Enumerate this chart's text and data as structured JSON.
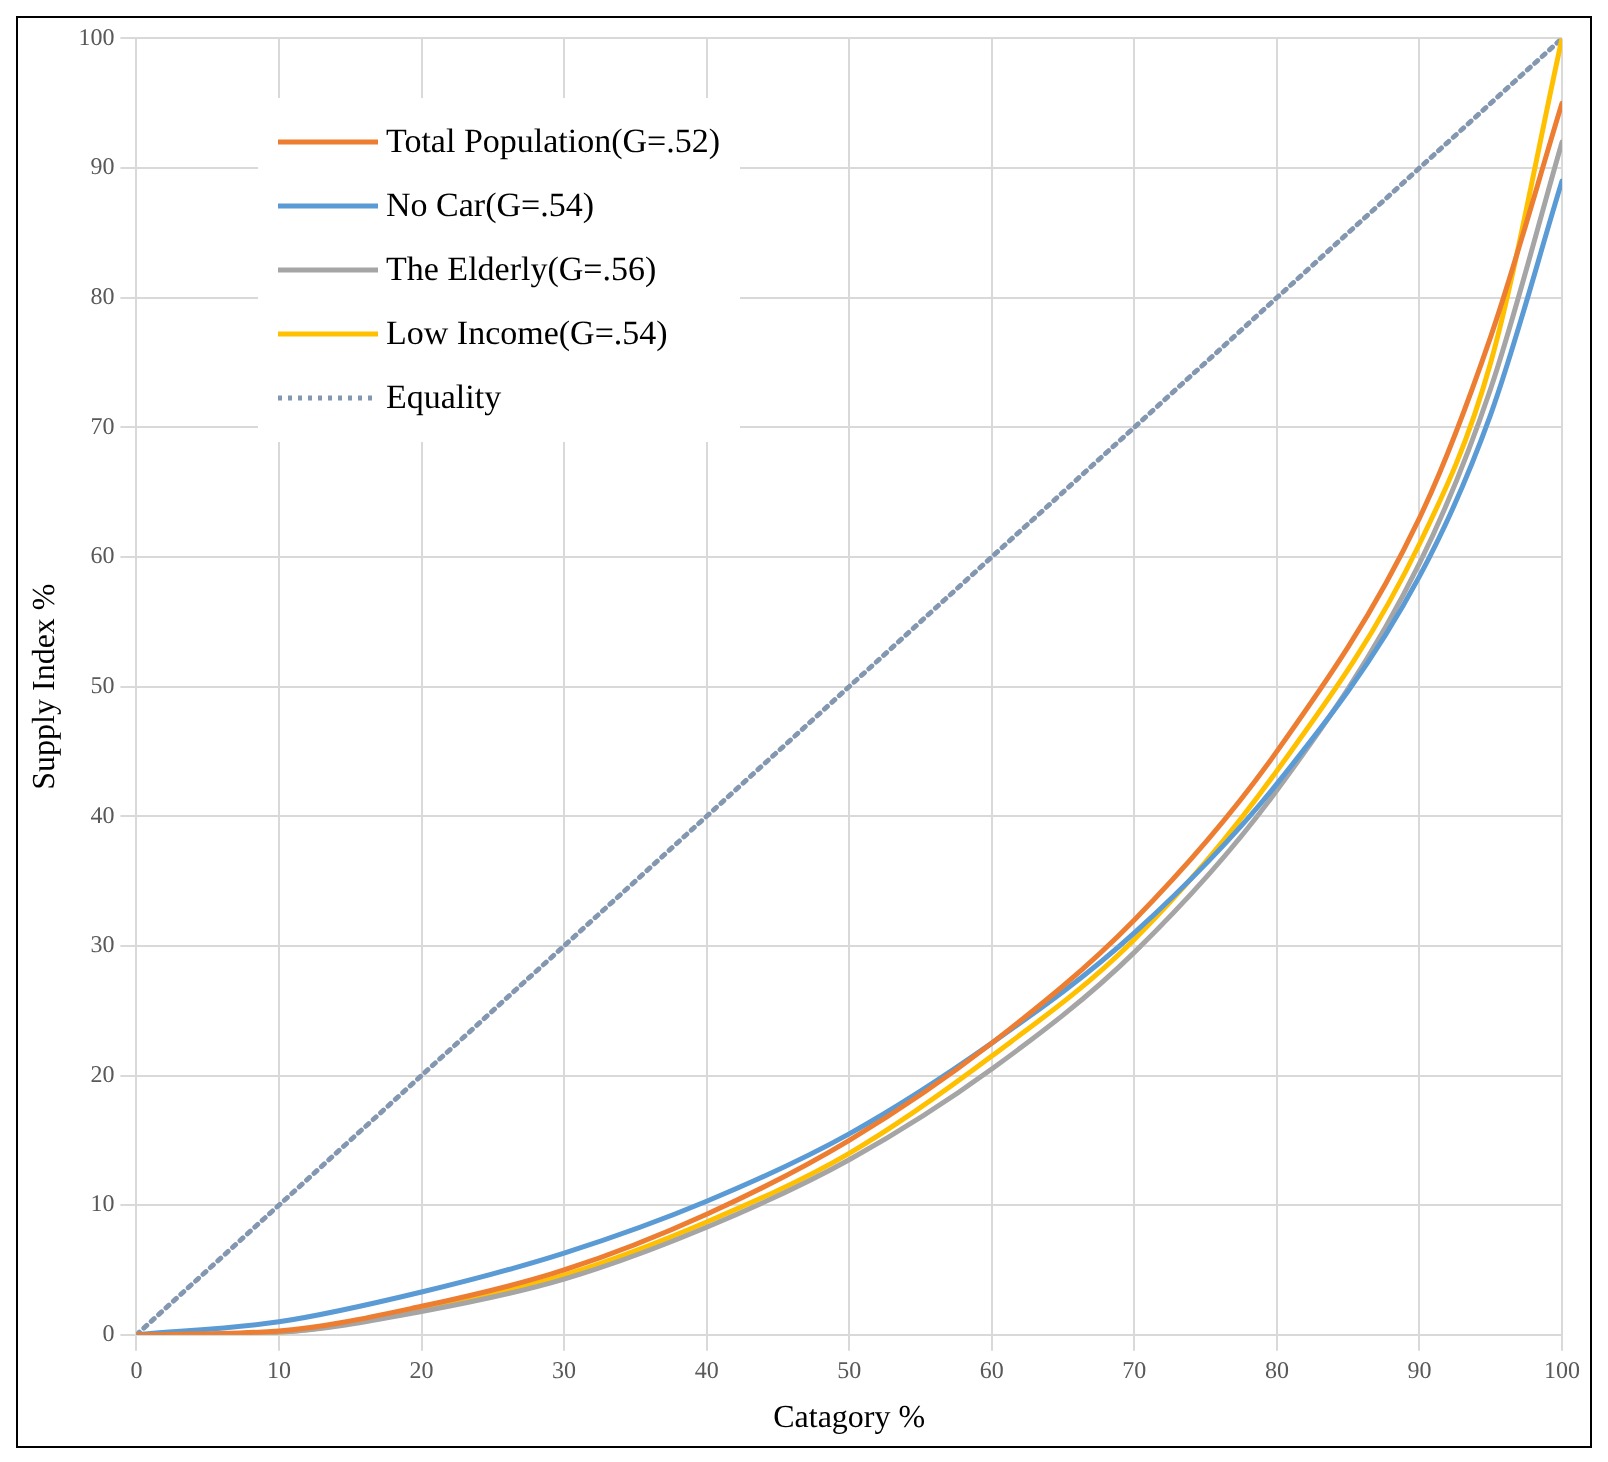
{
  "chart_data": {
    "type": "line",
    "xlabel": "Catagory %",
    "ylabel": "Supply Index %",
    "xlim": [
      0,
      100
    ],
    "xticks": [
      0,
      10,
      20,
      30,
      40,
      50,
      60,
      70,
      80,
      90,
      100
    ],
    "ylim": [
      0,
      100
    ],
    "yticks": [
      0,
      10,
      20,
      30,
      40,
      50,
      60,
      70,
      80,
      90,
      100
    ],
    "grid": true,
    "legend": "top left",
    "marker": "none",
    "series": [
      {
        "name": "Total Population(G=.52)",
        "color": "#ed7d31",
        "line_style": "solid",
        "x": [
          0,
          10,
          20,
          30,
          40,
          50,
          60,
          70,
          80,
          90,
          95,
          100
        ],
        "values": [
          0,
          0.3,
          2.2,
          5,
          9.3,
          15,
          22.5,
          32,
          45,
          63,
          77,
          95
        ]
      },
      {
        "name": "No Car(G=.54)",
        "color": "#5b9bd5",
        "line_style": "solid",
        "x": [
          0,
          10,
          20,
          30,
          40,
          50,
          60,
          70,
          80,
          90,
          95,
          100
        ],
        "values": [
          0,
          1,
          3.3,
          6.3,
          10.3,
          15.5,
          22.5,
          31,
          42.5,
          58.5,
          71,
          89
        ]
      },
      {
        "name": "The Elderly(G=.56)",
        "color": "#a5a5a5",
        "line_style": "solid",
        "x": [
          0,
          10,
          20,
          30,
          40,
          50,
          60,
          70,
          80,
          90,
          95,
          100
        ],
        "values": [
          0,
          0.2,
          1.8,
          4.3,
          8.3,
          13.5,
          20.5,
          29.5,
          42,
          59.5,
          73,
          92
        ]
      },
      {
        "name": "Low Income(G=.54)",
        "color": "#ffc000",
        "line_style": "solid",
        "x": [
          0,
          10,
          20,
          30,
          40,
          50,
          60,
          70,
          80,
          90,
          95,
          100
        ],
        "values": [
          0,
          0.2,
          2,
          4.6,
          8.7,
          14,
          21.5,
          30.5,
          43.5,
          61,
          75,
          100
        ]
      },
      {
        "name": "Equality",
        "color": "#8497b0",
        "line_style": "dotted",
        "x": [
          0,
          100
        ],
        "values": [
          0,
          100
        ]
      }
    ]
  }
}
